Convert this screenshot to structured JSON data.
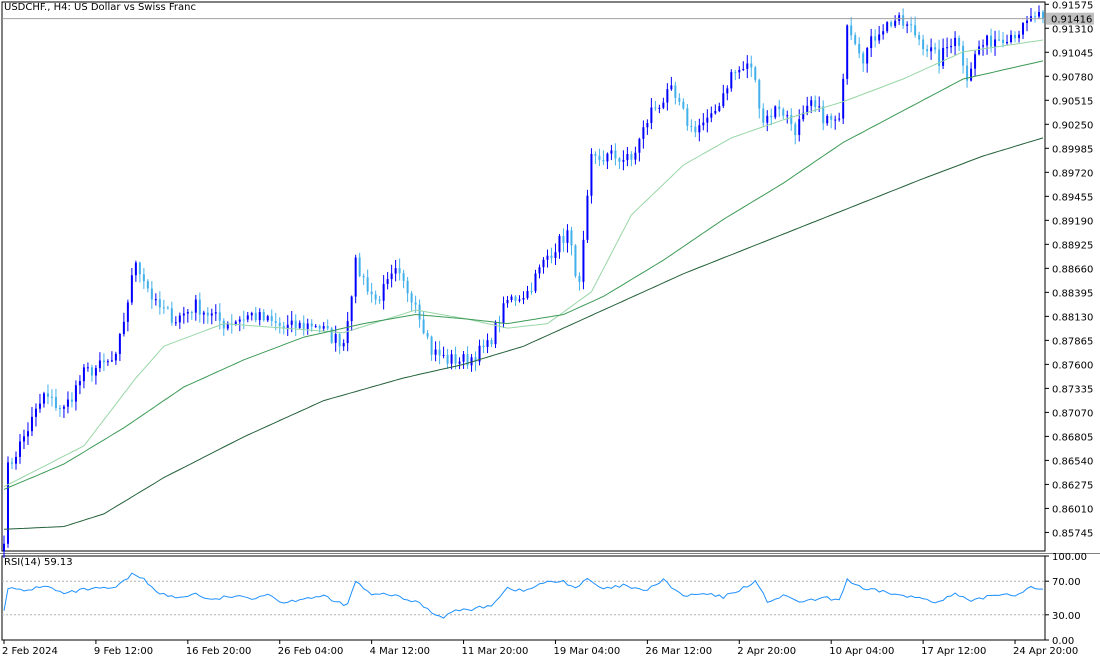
{
  "header": {
    "symbol": "USDCHF.",
    "timeframe": "H4",
    "description": "US Dollar vs Swiss Franc"
  },
  "colors": {
    "bull": "#0000ff",
    "bear": "#42b0ea",
    "ma_fast": "#98d6a6",
    "ma_mid": "#3b9a55",
    "ma_slow": "#24603a",
    "rsi_line": "#1e90ff",
    "grid_border": "#000000",
    "price_tag": "#c0c0c0"
  },
  "chart_data": [
    {
      "type": "candlestick",
      "title": "USDCHF., H4:  US Dollar vs Swiss Franc",
      "ylim": [
        0.8554,
        0.916
      ],
      "y_ticks": [
        "0.91575",
        "0.91310",
        "0.91045",
        "0.90780",
        "0.90515",
        "0.90250",
        "0.89985",
        "0.89720",
        "0.89455",
        "0.89190",
        "0.88925",
        "0.88660",
        "0.88395",
        "0.88130",
        "0.87865",
        "0.87600",
        "0.87335",
        "0.87070",
        "0.86805",
        "0.86540",
        "0.86275",
        "0.86010",
        "0.85745"
      ],
      "x_ticks": [
        "2 Feb 2024",
        "9 Feb 12:00",
        "16 Feb 20:00",
        "26 Feb 04:00",
        "4 Mar 12:00",
        "11 Mar 20:00",
        "19 Mar 04:00",
        "26 Mar 12:00",
        "2 Apr 20:00",
        "10 Apr 04:00",
        "17 Apr 12:00",
        "24 Apr 20:00"
      ],
      "last_price": "0.91416",
      "last_price_value": 0.91416,
      "anchors": [
        {
          "bar": 0,
          "price": 0.857
        },
        {
          "bar": 1,
          "price": 0.8645
        },
        {
          "bar": 5,
          "price": 0.868
        },
        {
          "bar": 10,
          "price": 0.8725
        },
        {
          "bar": 15,
          "price": 0.871
        },
        {
          "bar": 20,
          "price": 0.875
        },
        {
          "bar": 28,
          "price": 0.8765
        },
        {
          "bar": 33,
          "price": 0.8875
        },
        {
          "bar": 38,
          "price": 0.8825
        },
        {
          "bar": 43,
          "price": 0.881
        },
        {
          "bar": 48,
          "price": 0.8825
        },
        {
          "bar": 55,
          "price": 0.8805
        },
        {
          "bar": 62,
          "price": 0.8815
        },
        {
          "bar": 70,
          "price": 0.88
        },
        {
          "bar": 78,
          "price": 0.8805
        },
        {
          "bar": 82,
          "price": 0.879
        },
        {
          "bar": 85,
          "price": 0.8785
        },
        {
          "bar": 88,
          "price": 0.887
        },
        {
          "bar": 93,
          "price": 0.883
        },
        {
          "bar": 98,
          "price": 0.886
        },
        {
          "bar": 103,
          "price": 0.883
        },
        {
          "bar": 107,
          "price": 0.8775
        },
        {
          "bar": 111,
          "price": 0.8765
        },
        {
          "bar": 116,
          "price": 0.8765
        },
        {
          "bar": 121,
          "price": 0.878
        },
        {
          "bar": 126,
          "price": 0.883
        },
        {
          "bar": 131,
          "price": 0.884
        },
        {
          "bar": 136,
          "price": 0.888
        },
        {
          "bar": 141,
          "price": 0.8905
        },
        {
          "bar": 144,
          "price": 0.8845
        },
        {
          "bar": 147,
          "price": 0.8985
        },
        {
          "bar": 152,
          "price": 0.899
        },
        {
          "bar": 157,
          "price": 0.8985
        },
        {
          "bar": 162,
          "price": 0.904
        },
        {
          "bar": 167,
          "price": 0.906
        },
        {
          "bar": 172,
          "price": 0.902
        },
        {
          "bar": 177,
          "price": 0.903
        },
        {
          "bar": 182,
          "price": 0.908
        },
        {
          "bar": 187,
          "price": 0.909
        },
        {
          "bar": 190,
          "price": 0.903
        },
        {
          "bar": 194,
          "price": 0.9045
        },
        {
          "bar": 198,
          "price": 0.902
        },
        {
          "bar": 202,
          "price": 0.9045
        },
        {
          "bar": 206,
          "price": 0.903
        },
        {
          "bar": 209,
          "price": 0.9025
        },
        {
          "bar": 211,
          "price": 0.914
        },
        {
          "bar": 215,
          "price": 0.91
        },
        {
          "bar": 219,
          "price": 0.913
        },
        {
          "bar": 223,
          "price": 0.914
        },
        {
          "bar": 227,
          "price": 0.913
        },
        {
          "bar": 231,
          "price": 0.911
        },
        {
          "bar": 234,
          "price": 0.9095
        },
        {
          "bar": 238,
          "price": 0.9125
        },
        {
          "bar": 241,
          "price": 0.908
        },
        {
          "bar": 244,
          "price": 0.911
        },
        {
          "bar": 248,
          "price": 0.912
        },
        {
          "bar": 252,
          "price": 0.9125
        },
        {
          "bar": 255,
          "price": 0.913
        },
        {
          "bar": 258,
          "price": 0.9145
        },
        {
          "bar": 260,
          "price": 0.91416
        }
      ],
      "moving_averages": [
        {
          "key": "ma_fast",
          "points": [
            {
              "bar": 0,
              "price": 0.8625
            },
            {
              "bar": 20,
              "price": 0.867
            },
            {
              "bar": 33,
              "price": 0.8745
            },
            {
              "bar": 40,
              "price": 0.878
            },
            {
              "bar": 55,
              "price": 0.8805
            },
            {
              "bar": 70,
              "price": 0.88
            },
            {
              "bar": 85,
              "price": 0.8795
            },
            {
              "bar": 103,
              "price": 0.882
            },
            {
              "bar": 116,
              "price": 0.881
            },
            {
              "bar": 126,
              "price": 0.88
            },
            {
              "bar": 136,
              "price": 0.8805
            },
            {
              "bar": 147,
              "price": 0.884
            },
            {
              "bar": 157,
              "price": 0.8925
            },
            {
              "bar": 170,
              "price": 0.898
            },
            {
              "bar": 182,
              "price": 0.901
            },
            {
              "bar": 195,
              "price": 0.903
            },
            {
              "bar": 210,
              "price": 0.905
            },
            {
              "bar": 225,
              "price": 0.9075
            },
            {
              "bar": 240,
              "price": 0.9105
            },
            {
              "bar": 260,
              "price": 0.9118
            }
          ]
        },
        {
          "key": "ma_mid",
          "points": [
            {
              "bar": 0,
              "price": 0.8622
            },
            {
              "bar": 15,
              "price": 0.865
            },
            {
              "bar": 30,
              "price": 0.869
            },
            {
              "bar": 45,
              "price": 0.8735
            },
            {
              "bar": 60,
              "price": 0.8765
            },
            {
              "bar": 75,
              "price": 0.879
            },
            {
              "bar": 90,
              "price": 0.8805
            },
            {
              "bar": 103,
              "price": 0.8815
            },
            {
              "bar": 116,
              "price": 0.881
            },
            {
              "bar": 126,
              "price": 0.8805
            },
            {
              "bar": 140,
              "price": 0.8815
            },
            {
              "bar": 150,
              "price": 0.8835
            },
            {
              "bar": 165,
              "price": 0.8875
            },
            {
              "bar": 180,
              "price": 0.892
            },
            {
              "bar": 195,
              "price": 0.896
            },
            {
              "bar": 210,
              "price": 0.9005
            },
            {
              "bar": 225,
              "price": 0.904
            },
            {
              "bar": 240,
              "price": 0.9075
            },
            {
              "bar": 260,
              "price": 0.9095
            }
          ]
        },
        {
          "key": "ma_slow",
          "points": [
            {
              "bar": 0,
              "price": 0.8578
            },
            {
              "bar": 15,
              "price": 0.8581
            },
            {
              "bar": 25,
              "price": 0.8595
            },
            {
              "bar": 40,
              "price": 0.8635
            },
            {
              "bar": 60,
              "price": 0.868
            },
            {
              "bar": 80,
              "price": 0.872
            },
            {
              "bar": 100,
              "price": 0.8745
            },
            {
              "bar": 115,
              "price": 0.876
            },
            {
              "bar": 130,
              "price": 0.878
            },
            {
              "bar": 150,
              "price": 0.882
            },
            {
              "bar": 170,
              "price": 0.886
            },
            {
              "bar": 190,
              "price": 0.8895
            },
            {
              "bar": 210,
              "price": 0.893
            },
            {
              "bar": 230,
              "price": 0.8965
            },
            {
              "bar": 245,
              "price": 0.899
            },
            {
              "bar": 260,
              "price": 0.901
            }
          ]
        }
      ]
    },
    {
      "type": "line",
      "title": "RSI(14) 59.13",
      "ylim": [
        0,
        100
      ],
      "y_ticks": [
        "100.00",
        "70.00",
        "30.00",
        "0.00"
      ],
      "levels": [
        70,
        30
      ],
      "series": [
        {
          "name": "RSI(14)",
          "anchors": [
            {
              "bar": 0,
              "value": 37
            },
            {
              "bar": 1,
              "value": 62
            },
            {
              "bar": 5,
              "value": 58
            },
            {
              "bar": 10,
              "value": 65
            },
            {
              "bar": 15,
              "value": 55
            },
            {
              "bar": 20,
              "value": 60
            },
            {
              "bar": 28,
              "value": 62
            },
            {
              "bar": 32,
              "value": 78
            },
            {
              "bar": 35,
              "value": 74
            },
            {
              "bar": 38,
              "value": 57
            },
            {
              "bar": 43,
              "value": 50
            },
            {
              "bar": 48,
              "value": 55
            },
            {
              "bar": 52,
              "value": 47
            },
            {
              "bar": 56,
              "value": 52
            },
            {
              "bar": 62,
              "value": 50
            },
            {
              "bar": 66,
              "value": 55
            },
            {
              "bar": 70,
              "value": 44
            },
            {
              "bar": 75,
              "value": 50
            },
            {
              "bar": 80,
              "value": 52
            },
            {
              "bar": 83,
              "value": 45
            },
            {
              "bar": 86,
              "value": 42
            },
            {
              "bar": 88,
              "value": 70
            },
            {
              "bar": 92,
              "value": 53
            },
            {
              "bar": 96,
              "value": 55
            },
            {
              "bar": 100,
              "value": 49
            },
            {
              "bar": 104,
              "value": 44
            },
            {
              "bar": 108,
              "value": 30
            },
            {
              "bar": 110,
              "value": 28
            },
            {
              "bar": 113,
              "value": 35
            },
            {
              "bar": 118,
              "value": 37
            },
            {
              "bar": 122,
              "value": 42
            },
            {
              "bar": 126,
              "value": 62
            },
            {
              "bar": 130,
              "value": 58
            },
            {
              "bar": 135,
              "value": 68
            },
            {
              "bar": 140,
              "value": 70
            },
            {
              "bar": 143,
              "value": 62
            },
            {
              "bar": 146,
              "value": 72
            },
            {
              "bar": 150,
              "value": 60
            },
            {
              "bar": 155,
              "value": 65
            },
            {
              "bar": 160,
              "value": 58
            },
            {
              "bar": 165,
              "value": 71
            },
            {
              "bar": 170,
              "value": 52
            },
            {
              "bar": 175,
              "value": 55
            },
            {
              "bar": 180,
              "value": 51
            },
            {
              "bar": 185,
              "value": 62
            },
            {
              "bar": 188,
              "value": 70
            },
            {
              "bar": 191,
              "value": 46
            },
            {
              "bar": 195,
              "value": 52
            },
            {
              "bar": 200,
              "value": 45
            },
            {
              "bar": 205,
              "value": 50
            },
            {
              "bar": 209,
              "value": 48
            },
            {
              "bar": 211,
              "value": 72
            },
            {
              "bar": 215,
              "value": 60
            },
            {
              "bar": 220,
              "value": 58
            },
            {
              "bar": 225,
              "value": 52
            },
            {
              "bar": 230,
              "value": 50
            },
            {
              "bar": 234,
              "value": 45
            },
            {
              "bar": 238,
              "value": 55
            },
            {
              "bar": 242,
              "value": 45
            },
            {
              "bar": 246,
              "value": 52
            },
            {
              "bar": 250,
              "value": 55
            },
            {
              "bar": 254,
              "value": 54
            },
            {
              "bar": 257,
              "value": 65
            },
            {
              "bar": 260,
              "value": 59
            }
          ]
        }
      ]
    }
  ]
}
